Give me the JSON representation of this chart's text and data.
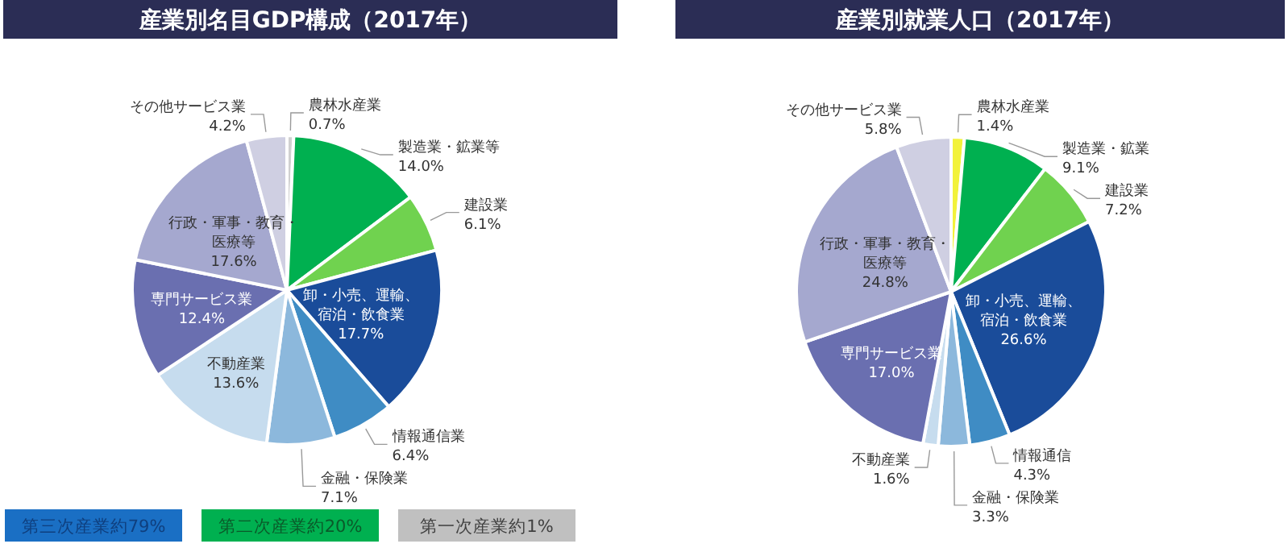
{
  "chart_data": [
    {
      "type": "pie",
      "title": "産業別名目GDP構成（2017年）",
      "categories": [
        "農林水産業",
        "製造業・鉱業等",
        "建設業",
        "卸・小売、運輸、宿泊・飲食業",
        "情報通信業",
        "金融・保険業",
        "不動産業",
        "専門サービス業",
        "行政・軍事・教育・医療等",
        "その他サービス業"
      ],
      "values": [
        0.7,
        14.0,
        6.1,
        17.7,
        6.4,
        7.1,
        13.6,
        12.4,
        17.6,
        4.2
      ],
      "value_labels": [
        "0.7%",
        "14.0%",
        "6.1%",
        "17.7%",
        "6.4%",
        "7.1%",
        "13.6%",
        "12.4%",
        "17.6%",
        "4.2%"
      ],
      "colors": [
        "#d0d0d0",
        "#00b050",
        "#70d24f",
        "#1a4c9a",
        "#3f8cc4",
        "#8cb8dc",
        "#c6dcee",
        "#6a6fb0",
        "#a5a8cf",
        "#cfcfe2"
      ],
      "annotations": [
        "第三次産業約79%",
        "第二次産業約20%",
        "第一次産業約1%"
      ]
    },
    {
      "type": "pie",
      "title": "産業別就業人口（2017年）",
      "categories": [
        "農林水産業",
        "製造業・鉱業",
        "建設業",
        "卸・小売、運輸、宿泊・飲食業",
        "情報通信",
        "金融・保険業",
        "不動産業",
        "専門サービス業",
        "行政・軍事・教育・医療等",
        "その他サービス業"
      ],
      "values": [
        1.4,
        9.1,
        7.2,
        26.6,
        4.3,
        3.3,
        1.6,
        17.0,
        24.8,
        5.8
      ],
      "value_labels": [
        "1.4%",
        "9.1%",
        "7.2%",
        "26.6%",
        "4.3%",
        "3.3%",
        "1.6%",
        "17.0%",
        "24.8%",
        "5.8%"
      ],
      "colors": [
        "#f2f23a",
        "#00b050",
        "#70d24f",
        "#1a4c9a",
        "#3f8cc4",
        "#8cb8dc",
        "#c6dcee",
        "#6a6fb0",
        "#a5a8cf",
        "#cfcfe2"
      ]
    }
  ]
}
